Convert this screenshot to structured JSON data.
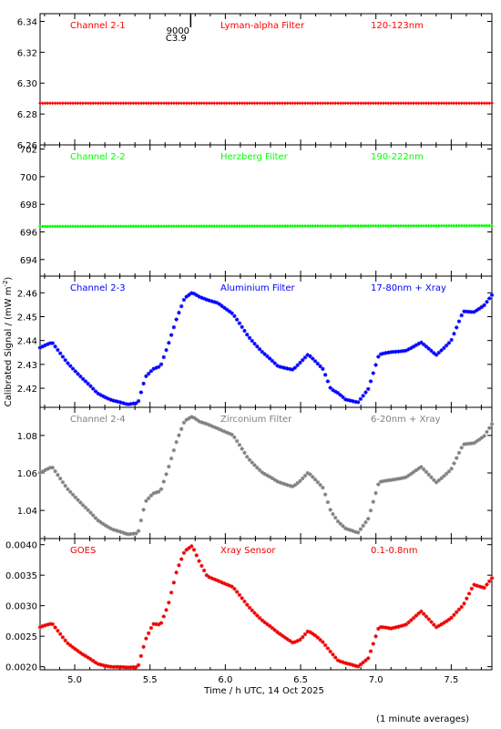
{
  "colors": {
    "red": "#ff0000",
    "green": "#00ff00",
    "blue": "#0000ff",
    "grey": "#808080",
    "red_dark": "#ee0000",
    "axis": "#000000"
  },
  "x_axis": {
    "label": "Time / h UTC, 14 Oct 2025",
    "ticks": [
      "5.0",
      "5.5",
      "6.0",
      "6.5",
      "7.0",
      "7.5"
    ],
    "tick_values": [
      5.0,
      5.5,
      6.0,
      6.5,
      7.0,
      7.5
    ],
    "xlim": [
      4.77,
      7.77
    ]
  },
  "y_axis_label": "Calibrated Signal / (mW m",
  "y_axis_label_sup": "-2",
  "y_axis_label_end": ")",
  "footnote": "(1 minute averages)",
  "marker": {
    "line1": "9000",
    "line2": "C3.9",
    "x": 5.77
  },
  "chart_data": [
    {
      "type": "scatter",
      "channel": "Channel 2-1",
      "filter": "Lyman-alpha Filter",
      "band": "120-123nm",
      "color": "#ff0000",
      "ylim": [
        6.26,
        6.345
      ],
      "yticks": [
        "6.26",
        "6.28",
        "6.30",
        "6.32",
        "6.34"
      ],
      "ytick_values": [
        6.26,
        6.28,
        6.3,
        6.32,
        6.34
      ],
      "x": [
        4.77,
        7.77
      ],
      "y": [
        6.287,
        6.287
      ]
    },
    {
      "type": "scatter",
      "channel": "Channel 2-2",
      "filter": "Herzberg Filter",
      "band": "190-222nm",
      "color": "#00ff00",
      "ylim": [
        692.8,
        702.3
      ],
      "yticks": [
        "694",
        "696",
        "698",
        "700",
        "702"
      ],
      "ytick_values": [
        694,
        696,
        698,
        700,
        702
      ],
      "x": [
        4.77,
        7.77
      ],
      "y": [
        696.4,
        696.45
      ]
    },
    {
      "type": "scatter",
      "channel": "Channel 2-3",
      "filter": "Aluminium Filter",
      "band": "17-80nm + Xray",
      "color": "#0000ff",
      "ylim": [
        2.412,
        2.467
      ],
      "yticks": [
        "2.42",
        "2.43",
        "2.44",
        "2.45",
        "2.46"
      ],
      "ytick_values": [
        2.42,
        2.43,
        2.44,
        2.45,
        2.46
      ],
      "x": [
        4.77,
        4.85,
        4.95,
        5.05,
        5.15,
        5.25,
        5.35,
        5.42,
        5.47,
        5.52,
        5.57,
        5.62,
        5.68,
        5.73,
        5.78,
        5.83,
        5.88,
        5.95,
        6.05,
        6.15,
        6.25,
        6.35,
        6.45,
        6.5,
        6.55,
        6.6,
        6.65,
        6.7,
        6.75,
        6.8,
        6.88,
        6.95,
        7.02,
        7.1,
        7.2,
        7.3,
        7.4,
        7.5,
        7.58,
        7.65,
        7.72,
        7.77
      ],
      "y": [
        2.437,
        2.439,
        2.431,
        2.424,
        2.418,
        2.415,
        2.413,
        2.414,
        2.425,
        2.428,
        2.429,
        2.438,
        2.45,
        2.458,
        2.46,
        2.458,
        2.457,
        2.456,
        2.451,
        2.442,
        2.435,
        2.429,
        2.428,
        2.431,
        2.434,
        2.431,
        2.428,
        2.42,
        2.418,
        2.415,
        2.414,
        2.42,
        2.434,
        2.435,
        2.436,
        2.439,
        2.434,
        2.44,
        2.452,
        2.452,
        2.455,
        2.459
      ]
    },
    {
      "type": "scatter",
      "channel": "Channel 2-4",
      "filter": "Zirconium Filter",
      "band": "6-20nm + Xray",
      "color": "#808080",
      "ylim": [
        1.025,
        1.095
      ],
      "yticks": [
        "1.04",
        "1.06",
        "1.08"
      ],
      "ytick_values": [
        1.04,
        1.06,
        1.08
      ],
      "x": [
        4.77,
        4.85,
        4.95,
        5.05,
        5.15,
        5.25,
        5.35,
        5.42,
        5.47,
        5.52,
        5.57,
        5.62,
        5.68,
        5.73,
        5.78,
        5.83,
        5.88,
        5.95,
        6.05,
        6.15,
        6.25,
        6.35,
        6.45,
        6.5,
        6.55,
        6.6,
        6.65,
        6.7,
        6.75,
        6.8,
        6.88,
        6.95,
        7.02,
        7.1,
        7.2,
        7.3,
        7.4,
        7.5,
        7.58,
        7.65,
        7.72,
        7.77
      ],
      "y": [
        1.06,
        1.063,
        1.052,
        1.043,
        1.035,
        1.03,
        1.027,
        1.028,
        1.045,
        1.049,
        1.05,
        1.062,
        1.078,
        1.088,
        1.09,
        1.087,
        1.086,
        1.084,
        1.08,
        1.068,
        1.06,
        1.055,
        1.053,
        1.056,
        1.06,
        1.056,
        1.052,
        1.04,
        1.034,
        1.03,
        1.028,
        1.036,
        1.055,
        1.056,
        1.058,
        1.063,
        1.055,
        1.062,
        1.075,
        1.076,
        1.08,
        1.086
      ]
    },
    {
      "type": "scatter",
      "channel": "GOES",
      "filter": "Xray Sensor",
      "band": "0.1-0.8nm",
      "color": "#ee0000",
      "ylim": [
        0.00195,
        0.0041
      ],
      "yticks": [
        "0.0020",
        "0.0025",
        "0.0030",
        "0.0035",
        "0.0040"
      ],
      "ytick_values": [
        0.002,
        0.0025,
        0.003,
        0.0035,
        0.004
      ],
      "x": [
        4.77,
        4.85,
        4.95,
        5.05,
        5.15,
        5.25,
        5.35,
        5.42,
        5.47,
        5.52,
        5.57,
        5.62,
        5.68,
        5.73,
        5.78,
        5.83,
        5.88,
        5.95,
        6.05,
        6.15,
        6.25,
        6.35,
        6.45,
        6.5,
        6.55,
        6.6,
        6.65,
        6.7,
        6.75,
        6.8,
        6.88,
        6.95,
        7.02,
        7.1,
        7.2,
        7.3,
        7.4,
        7.5,
        7.58,
        7.65,
        7.72,
        7.77
      ],
      "y": [
        0.00265,
        0.0027,
        0.0024,
        0.0022,
        0.00205,
        0.002,
        0.00198,
        0.002,
        0.00245,
        0.0027,
        0.00268,
        0.003,
        0.0036,
        0.0039,
        0.00398,
        0.0037,
        0.00348,
        0.00342,
        0.0033,
        0.003,
        0.00275,
        0.00255,
        0.0024,
        0.00245,
        0.00258,
        0.0025,
        0.0024,
        0.00225,
        0.0021,
        0.00205,
        0.002,
        0.00215,
        0.00265,
        0.00262,
        0.0027,
        0.0029,
        0.00265,
        0.0028,
        0.003,
        0.00335,
        0.0033,
        0.00345
      ]
    }
  ]
}
